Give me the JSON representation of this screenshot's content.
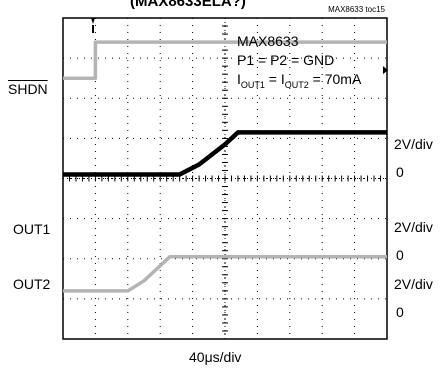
{
  "header": {
    "title_fragment": "(MAX8633ELA?)",
    "toc_id": "MAX8633 toc15"
  },
  "annotation": {
    "part": "MAX8633",
    "pins": "P1 = P2 = GND",
    "current_main": "I",
    "current_sub1": "OUT1",
    "current_mid": " = I",
    "current_sub2": "OUT2",
    "current_value": " = 70mA"
  },
  "channel_labels": {
    "shdn": "SHDN",
    "out1": "OUT1",
    "out2": "OUT2"
  },
  "scale_labels": {
    "ch1_div": "2V/div",
    "ch1_zero": "0",
    "ch2_div": "2V/div",
    "ch2_zero": "0",
    "ch3_div": "2V/div",
    "ch3_zero": "0"
  },
  "time_scale": "40μs/div",
  "colors": {
    "shdn_trace": "#b4b4b4",
    "out1_trace": "#000000",
    "out2_trace": "#b4b4b4"
  },
  "chart_data": {
    "type": "line",
    "title": "",
    "xlabel": "40μs/div",
    "xlim": [
      0,
      10
    ],
    "ylim": [
      0,
      8
    ],
    "grid": true,
    "series": [
      {
        "name": "SHDN",
        "x": [
          0,
          1,
          1,
          10
        ],
        "y": [
          6.5,
          6.5,
          7.4,
          7.4
        ]
      },
      {
        "name": "OUT1",
        "x": [
          0,
          3.6,
          4.2,
          5.0,
          5.4,
          10
        ],
        "y": [
          4.1,
          4.1,
          4.35,
          4.85,
          5.15,
          5.15
        ]
      },
      {
        "name": "OUT2",
        "x": [
          0,
          2.0,
          2.5,
          3.3,
          10
        ],
        "y": [
          1.2,
          1.2,
          1.45,
          2.05,
          2.05
        ]
      }
    ]
  }
}
